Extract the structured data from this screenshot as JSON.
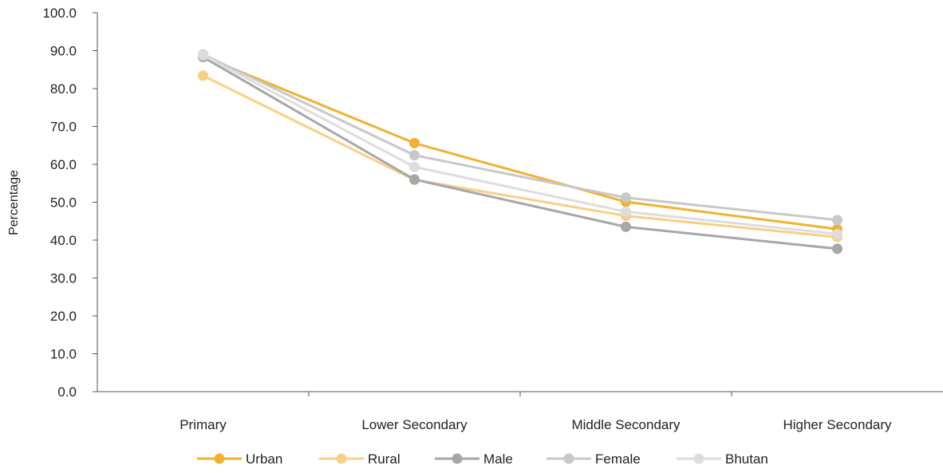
{
  "chart_data": {
    "type": "line",
    "title": "",
    "xlabel": "",
    "ylabel": "Percentage",
    "ylim": [
      0,
      100
    ],
    "y_ticks": [
      "0.0",
      "10.0",
      "20.0",
      "30.0",
      "40.0",
      "50.0",
      "60.0",
      "70.0",
      "80.0",
      "90.0",
      "100.0"
    ],
    "categories": [
      "Primary",
      "Lower Secondary",
      "Middle Secondary",
      "Higher Secondary"
    ],
    "series": [
      {
        "name": "Urban",
        "color": "#F2B12E",
        "values": [
          88.5,
          65.6,
          50.1,
          42.9
        ]
      },
      {
        "name": "Rural",
        "color": "#F7D086",
        "values": [
          83.4,
          55.9,
          46.4,
          40.8
        ]
      },
      {
        "name": "Male",
        "color": "#A7A6AB",
        "values": [
          88.3,
          56.0,
          43.5,
          37.7
        ]
      },
      {
        "name": "Female",
        "color": "#C8C8C8",
        "values": [
          89.0,
          62.4,
          51.2,
          45.3
        ]
      },
      {
        "name": "Bhutan",
        "color": "#DDDDDD",
        "values": [
          88.8,
          59.3,
          47.5,
          41.6
        ]
      }
    ],
    "grid": false,
    "legend_position": "bottom"
  }
}
